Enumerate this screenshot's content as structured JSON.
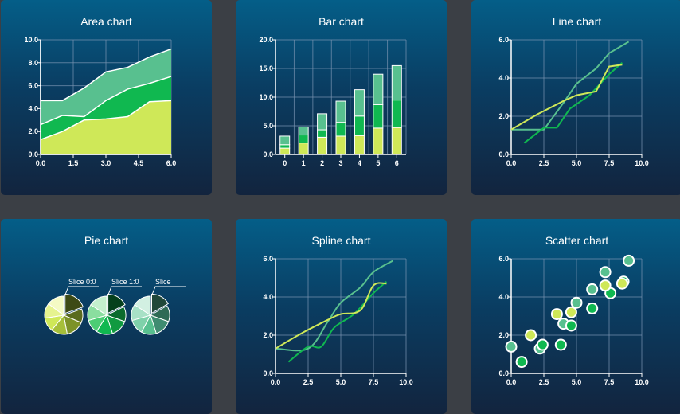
{
  "colors": {
    "light": "#cfe858",
    "mid": "#10b850",
    "teal": "#58c08f",
    "grid": "#7a94b2",
    "axis": "#ffffff"
  },
  "charts": [
    {
      "title": "Area chart"
    },
    {
      "title": "Bar chart"
    },
    {
      "title": "Line chart"
    },
    {
      "title": "Pie chart"
    },
    {
      "title": "Spline chart"
    },
    {
      "title": "Scatter chart"
    }
  ],
  "chart_data": [
    {
      "type": "area",
      "title": "Area chart",
      "x": [
        0,
        1,
        2,
        3,
        4,
        5,
        6
      ],
      "series": [
        {
          "values": [
            1.3,
            2.0,
            3.0,
            3.1,
            3.3,
            4.6,
            4.7
          ]
        },
        {
          "values": [
            1.3,
            1.4,
            0.3,
            1.6,
            2.4,
            1.6,
            2.1
          ]
        },
        {
          "values": [
            2.1,
            1.3,
            2.5,
            2.5,
            1.9,
            2.3,
            2.4
          ]
        }
      ],
      "xlim": [
        0,
        6
      ],
      "ylim": [
        0,
        10
      ],
      "xticks": [
        "0.0",
        "1.5",
        "3.0",
        "4.5",
        "6.0"
      ],
      "yticks": [
        "0.0",
        "2.0",
        "4.0",
        "6.0",
        "8.0",
        "10.0"
      ],
      "grid": true
    },
    {
      "type": "bar",
      "title": "Bar chart",
      "categories": [
        "0",
        "1",
        "2",
        "3",
        "4",
        "5",
        "6"
      ],
      "series": [
        {
          "values": [
            1.1,
            2.0,
            3.0,
            3.2,
            3.3,
            4.6,
            4.7
          ]
        },
        {
          "values": [
            0.6,
            1.4,
            1.3,
            2.4,
            3.4,
            4.1,
            4.8
          ]
        },
        {
          "values": [
            1.5,
            1.4,
            2.8,
            3.7,
            4.6,
            5.3,
            6.0
          ]
        }
      ],
      "ylim": [
        0,
        20
      ],
      "yticks": [
        "0.0",
        "5.0",
        "10.0",
        "15.0",
        "20.0"
      ],
      "grid": true
    },
    {
      "type": "line",
      "title": "Line chart",
      "series": [
        {
          "x": [
            0,
            2.5,
            4,
            5,
            6.5,
            7.5,
            9
          ],
          "y": [
            1.3,
            1.3,
            2.7,
            3.7,
            4.5,
            5.3,
            5.9
          ]
        },
        {
          "x": [
            1,
            2.5,
            3.5,
            4.5,
            6,
            7.5,
            8.5
          ],
          "y": [
            0.6,
            1.4,
            1.4,
            2.4,
            3.1,
            4.2,
            4.8
          ]
        },
        {
          "x": [
            0,
            2,
            4,
            5,
            6.5,
            7.5,
            8.5
          ],
          "y": [
            1.3,
            2.1,
            2.8,
            3.1,
            3.3,
            4.6,
            4.7
          ]
        }
      ],
      "xlim": [
        0,
        10
      ],
      "ylim": [
        0,
        6
      ],
      "xticks": [
        "0.0",
        "2.5",
        "5.0",
        "7.5",
        "10.0"
      ],
      "yticks": [
        "0.0",
        "2.0",
        "4.0",
        "6.0"
      ],
      "grid": true
    },
    {
      "type": "pie",
      "title": "Pie chart",
      "pies": [
        {
          "label": "Slice 0:0",
          "values": [
            2,
            1.2,
            1.6,
            1.4,
            1.2,
            1.3,
            1.5
          ]
        },
        {
          "label": "Slice 1:0",
          "values": [
            1.8,
            1.3,
            1.5,
            1.4,
            1.2,
            1.4,
            1.6
          ]
        },
        {
          "label": "Slice",
          "values": [
            1.7,
            1.4,
            1.5,
            1.3,
            1.3,
            1.4,
            1.6
          ]
        }
      ]
    },
    {
      "type": "line",
      "title": "Spline chart",
      "smooth": true,
      "series": [
        {
          "x": [
            0,
            2.5,
            4,
            5,
            6.5,
            7.5,
            9
          ],
          "y": [
            1.3,
            1.3,
            2.7,
            3.7,
            4.5,
            5.3,
            5.9
          ]
        },
        {
          "x": [
            1,
            2.5,
            3.5,
            4.5,
            6,
            7.5,
            8.5
          ],
          "y": [
            0.6,
            1.4,
            1.4,
            2.4,
            3.1,
            4.2,
            4.8
          ]
        },
        {
          "x": [
            0,
            2,
            4,
            5,
            6.5,
            7.5,
            8.5
          ],
          "y": [
            1.3,
            2.1,
            2.8,
            3.1,
            3.3,
            4.6,
            4.7
          ]
        }
      ],
      "xlim": [
        0,
        10
      ],
      "ylim": [
        0,
        6
      ],
      "xticks": [
        "0.0",
        "2.5",
        "5.0",
        "7.5",
        "10.0"
      ],
      "yticks": [
        "0.0",
        "2.0",
        "4.0",
        "6.0"
      ],
      "grid": true
    },
    {
      "type": "scatter",
      "title": "Scatter chart",
      "series": [
        {
          "x": [
            0,
            2.2,
            4,
            5,
            6.2,
            7.2,
            9
          ],
          "y": [
            1.4,
            1.3,
            2.6,
            3.7,
            4.4,
            5.3,
            5.9
          ]
        },
        {
          "x": [
            0.8,
            2.4,
            3.8,
            4.6,
            6.2,
            7.6,
            8.6
          ],
          "y": [
            0.6,
            1.5,
            1.5,
            2.5,
            3.4,
            4.2,
            4.8
          ]
        },
        {
          "x": [
            1.5,
            3.5,
            4.6,
            7.2,
            8.5
          ],
          "y": [
            2.0,
            3.1,
            3.2,
            4.6,
            4.7
          ]
        }
      ],
      "xlim": [
        0,
        10
      ],
      "ylim": [
        0,
        6
      ],
      "xticks": [
        "0.0",
        "2.5",
        "5.0",
        "7.5",
        "10.0"
      ],
      "yticks": [
        "0.0",
        "2.0",
        "4.0",
        "6.0"
      ],
      "grid": true
    }
  ]
}
